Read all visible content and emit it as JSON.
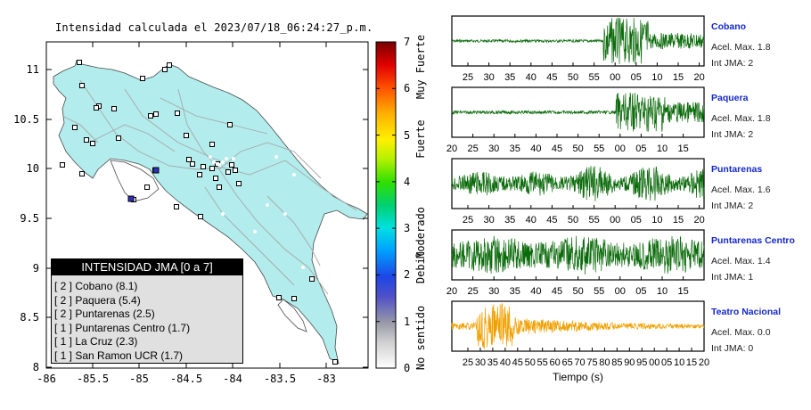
{
  "map": {
    "title": "Intensidad calculada el 2023/07/18_06:24:27_p.m.",
    "x_ticks": [
      "-86",
      "-85.5",
      "-85",
      "-84.5",
      "-84",
      "-83.5",
      "-83"
    ],
    "y_ticks": [
      "11",
      "10.5",
      "10",
      "9.5",
      "9",
      "8.5",
      "8"
    ]
  },
  "legend": {
    "title": "INTENSIDAD JMA [0 a 7]",
    "items": [
      "[ 2 ] Cobano (8.1)",
      "[ 2 ] Paquera (5.4)",
      "[ 2 ] Puntarenas (2.5)",
      "[ 1 ] Puntarenas Centro (1.7)",
      "[ 1 ] La Cruz (2.3)",
      "[ 1 ] San Ramon UCR (1.7)"
    ]
  },
  "colorbar": {
    "ticks": [
      "7",
      "6",
      "5",
      "4",
      "3",
      "2",
      "1",
      "0"
    ],
    "words": [
      "Muy Fuerte",
      "Fuerte",
      "Moderado",
      "Debil",
      "No sentido"
    ]
  },
  "stations": [
    {
      "name": "Cobano",
      "accel": "Acel. Max. 1.8",
      "jma": "Int JMA: 2",
      "color": "#0b6b0b",
      "ticks": [
        "25",
        "30",
        "35",
        "40",
        "45",
        "50",
        "55",
        "00",
        "05",
        "10",
        "15",
        "20"
      ]
    },
    {
      "name": "Paquera",
      "accel": "Acel. Max. 1.8",
      "jma": "Int JMA: 2",
      "color": "#0b6b0b",
      "ticks": [
        "20",
        "25",
        "30",
        "35",
        "40",
        "45",
        "50",
        "55",
        "00",
        "05",
        "10",
        "15"
      ]
    },
    {
      "name": "Puntarenas",
      "accel": "Acel. Max. 1.6",
      "jma": "Int JMA: 2",
      "color": "#0b6b0b",
      "ticks": [
        "25",
        "30",
        "35",
        "40",
        "45",
        "50",
        "55",
        "00",
        "05",
        "10",
        "15",
        "20"
      ]
    },
    {
      "name": "Puntarenas Centro",
      "accel": "Acel. Max. 1.4",
      "jma": "Int JMA: 1",
      "color": "#0b6b0b",
      "ticks": [
        "20",
        "25",
        "30",
        "35",
        "40",
        "45",
        "50",
        "55",
        "00",
        "05",
        "10",
        "15"
      ]
    },
    {
      "name": "Teatro Nacional",
      "accel": "Acel. Max. 0.0",
      "jma": "Int JMA: 0",
      "color": "#f0a000",
      "ticks": [
        "25",
        "30",
        "35",
        "40",
        "45",
        "50",
        "55",
        "60",
        "65",
        "70",
        "75",
        "80",
        "85",
        "90",
        "95",
        "00",
        "05",
        "10",
        "15",
        "20"
      ]
    }
  ],
  "xlabel": "Tiempo (s)",
  "chart_data": [
    {
      "type": "scatter",
      "title": "Intensidad calculada el 2023/07/18_06:24:27_p.m.",
      "xlabel": "",
      "ylabel": "",
      "xlim": [
        -86,
        -82.65
      ],
      "ylim": [
        8,
        11.35
      ],
      "colorbar": {
        "range": [
          0,
          7
        ],
        "labels": [
          "No sentido",
          "Debil",
          "Moderado",
          "Fuerte",
          "Muy Fuerte"
        ]
      }
    },
    {
      "type": "line",
      "xlabel": "Tiempo (s)",
      "series": [
        {
          "name": "Cobano",
          "max_accel": 1.8,
          "jma": 2
        },
        {
          "name": "Paquera",
          "max_accel": 1.8,
          "jma": 2
        },
        {
          "name": "Puntarenas",
          "max_accel": 1.6,
          "jma": 2
        },
        {
          "name": "Puntarenas Centro",
          "max_accel": 1.4,
          "jma": 1
        },
        {
          "name": "Teatro Nacional",
          "max_accel": 0.0,
          "jma": 0
        }
      ]
    }
  ]
}
